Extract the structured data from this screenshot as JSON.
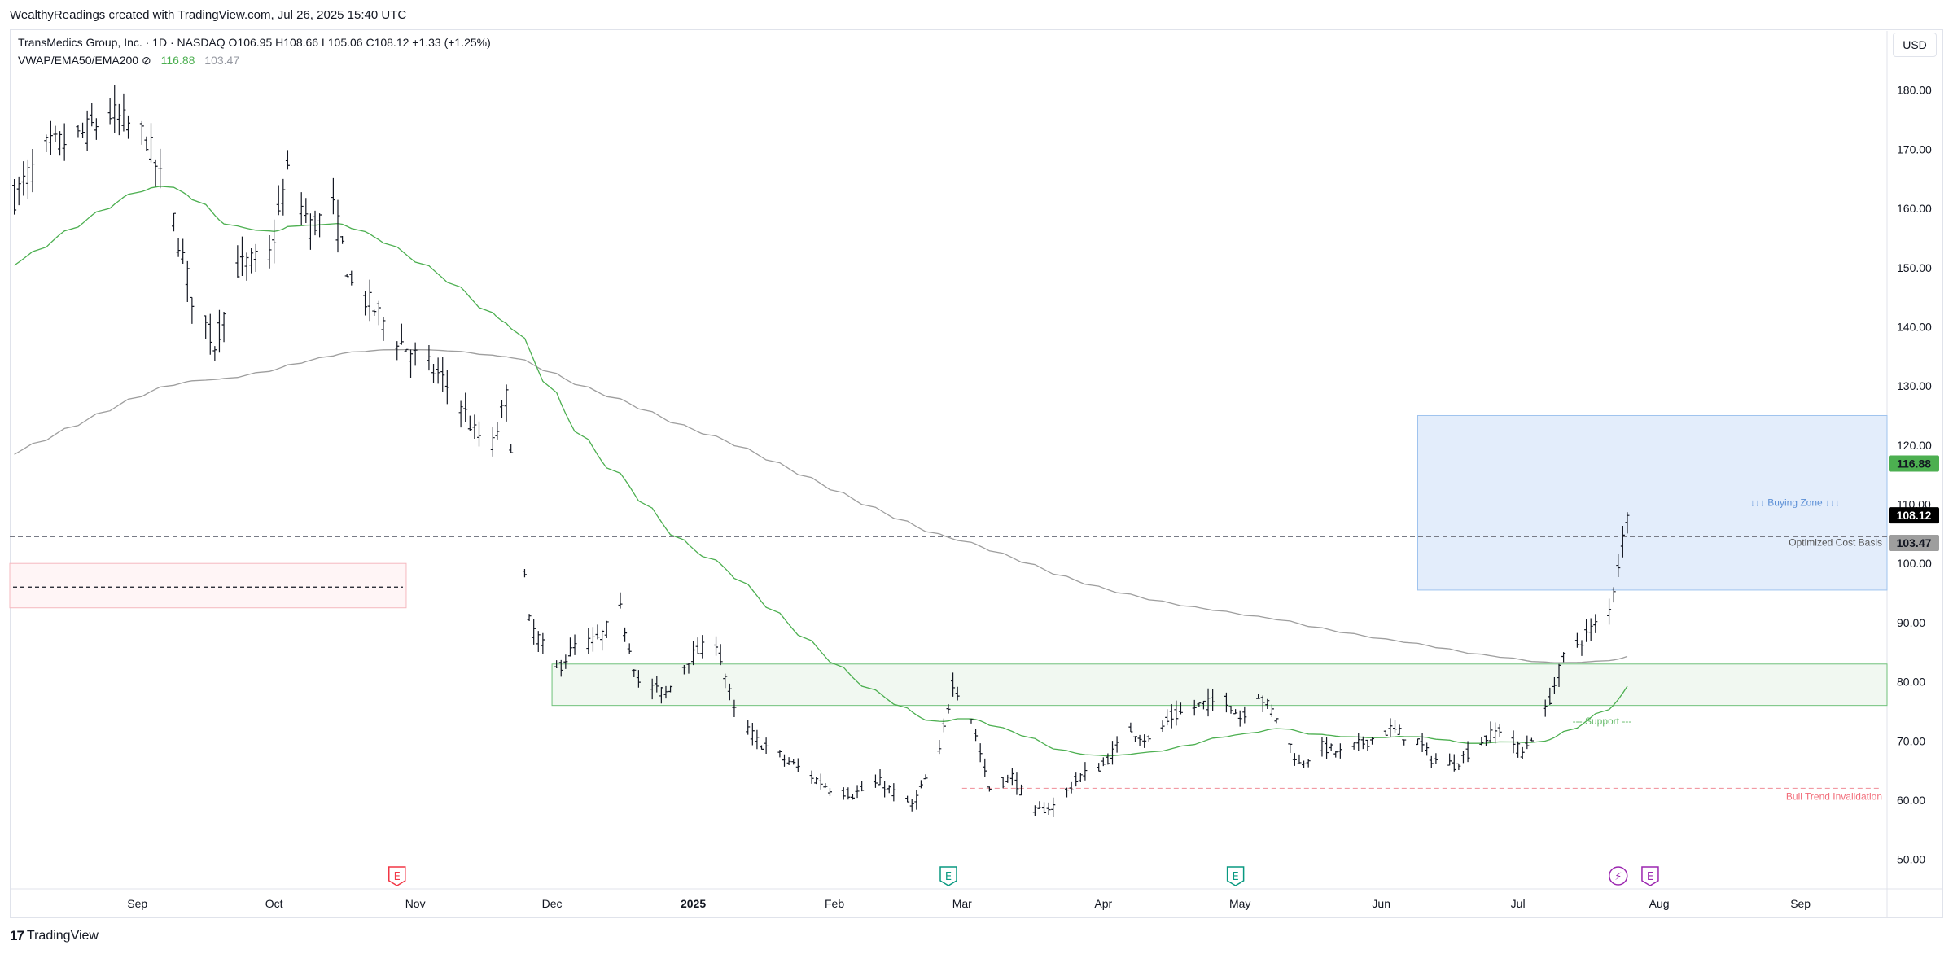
{
  "header": {
    "credit": "WealthyReadings created with TradingView.com, Jul 26, 2025 15:40 UTC"
  },
  "legend": {
    "symbol_line": "TransMedics Group, Inc. · 1D · NASDAQ  O106.95  H108.66  L105.06  C108.12  +1.33 (+1.25%)",
    "indicator_name": "VWAP/EMA50/EMA200  ⊘",
    "ema50_value": "116.88",
    "ema200_value": "103.47"
  },
  "toolbar": {
    "currency": "USD"
  },
  "footer": {
    "brand": "TradingView",
    "brand_mark": "17"
  },
  "colors": {
    "ema50": "#4caf50",
    "ema200": "#9e9e9e",
    "buying_zone_fill": "#e3edfb",
    "buying_zone_border": "#9fc3ee",
    "support_fill": "#f1f8f1",
    "support_border": "#6fc17a",
    "resistance_fill": "#fff5f6",
    "resistance_border": "#f5b8bf",
    "invalidation": "#f08c96",
    "bars": "#131722",
    "earnings_red": "#f23645",
    "earnings_teal": "#089981",
    "dividend_purple": "#9c27b0"
  },
  "chart_data": {
    "type": "ohlc",
    "symbol": "TransMedics Group, Inc.",
    "interval": "1D",
    "exchange": "NASDAQ",
    "currency": "USD",
    "last": {
      "open": 106.95,
      "high": 108.66,
      "low": 105.06,
      "close": 108.12,
      "change": 1.33,
      "change_pct": 1.25
    },
    "ylim": [
      45,
      190
    ],
    "y_ticks": [
      "50.00",
      "60.00",
      "70.00",
      "80.00",
      "90.00",
      "100.00",
      "110.00",
      "120.00",
      "130.00",
      "140.00",
      "150.00",
      "160.00",
      "170.00",
      "180.00"
    ],
    "x_ticks": [
      {
        "label": "Sep",
        "date": "2024-09-01",
        "bold": false
      },
      {
        "label": "Oct",
        "date": "2024-10-01",
        "bold": false
      },
      {
        "label": "Nov",
        "date": "2024-11-01",
        "bold": false
      },
      {
        "label": "Dec",
        "date": "2024-12-01",
        "bold": false
      },
      {
        "label": "2025",
        "date": "2025-01-01",
        "bold": true
      },
      {
        "label": "Feb",
        "date": "2025-02-01",
        "bold": false
      },
      {
        "label": "Mar",
        "date": "2025-03-01",
        "bold": false
      },
      {
        "label": "Apr",
        "date": "2025-04-01",
        "bold": false
      },
      {
        "label": "May",
        "date": "2025-05-01",
        "bold": false
      },
      {
        "label": "Jun",
        "date": "2025-06-01",
        "bold": false
      },
      {
        "label": "Jul",
        "date": "2025-07-01",
        "bold": false
      },
      {
        "label": "Aug",
        "date": "2025-08-01",
        "bold": false
      },
      {
        "label": "Sep",
        "date": "2025-09-01",
        "bold": false
      }
    ],
    "xlim": [
      "2024-08-04",
      "2025-09-20"
    ],
    "close_series": [
      {
        "date": "2024-08-05",
        "close": 162
      },
      {
        "date": "2024-08-12",
        "close": 170
      },
      {
        "date": "2024-08-19",
        "close": 172
      },
      {
        "date": "2024-08-26",
        "close": 176
      },
      {
        "date": "2024-09-03",
        "close": 172
      },
      {
        "date": "2024-09-09",
        "close": 158
      },
      {
        "date": "2024-09-13",
        "close": 145
      },
      {
        "date": "2024-09-18",
        "close": 137
      },
      {
        "date": "2024-09-23",
        "close": 150
      },
      {
        "date": "2024-09-30",
        "close": 152
      },
      {
        "date": "2024-10-04",
        "close": 166
      },
      {
        "date": "2024-10-09",
        "close": 157
      },
      {
        "date": "2024-10-14",
        "close": 160
      },
      {
        "date": "2024-10-18",
        "close": 147
      },
      {
        "date": "2024-10-23",
        "close": 143
      },
      {
        "date": "2024-10-28",
        "close": 138
      },
      {
        "date": "2024-11-01",
        "close": 135
      },
      {
        "date": "2024-11-06",
        "close": 132
      },
      {
        "date": "2024-11-11",
        "close": 127
      },
      {
        "date": "2024-11-14",
        "close": 122
      },
      {
        "date": "2024-11-18",
        "close": 120
      },
      {
        "date": "2024-11-21",
        "close": 128
      },
      {
        "date": "2024-11-26",
        "close": 90
      },
      {
        "date": "2024-12-02",
        "close": 82
      },
      {
        "date": "2024-12-06",
        "close": 86
      },
      {
        "date": "2024-12-11",
        "close": 87
      },
      {
        "date": "2024-12-16",
        "close": 92
      },
      {
        "date": "2024-12-20",
        "close": 80
      },
      {
        "date": "2024-12-26",
        "close": 78
      },
      {
        "date": "2024-12-31",
        "close": 84
      },
      {
        "date": "2025-01-06",
        "close": 87
      },
      {
        "date": "2025-01-10",
        "close": 75
      },
      {
        "date": "2025-01-15",
        "close": 70
      },
      {
        "date": "2025-01-21",
        "close": 67
      },
      {
        "date": "2025-01-27",
        "close": 64
      },
      {
        "date": "2025-01-31",
        "close": 62
      },
      {
        "date": "2025-02-05",
        "close": 61
      },
      {
        "date": "2025-02-11",
        "close": 63
      },
      {
        "date": "2025-02-18",
        "close": 59
      },
      {
        "date": "2025-02-24",
        "close": 68
      },
      {
        "date": "2025-02-27",
        "close": 80
      },
      {
        "date": "2025-03-03",
        "close": 74
      },
      {
        "date": "2025-03-07",
        "close": 62
      },
      {
        "date": "2025-03-12",
        "close": 64
      },
      {
        "date": "2025-03-17",
        "close": 58
      },
      {
        "date": "2025-03-21",
        "close": 59
      },
      {
        "date": "2025-03-27",
        "close": 64
      },
      {
        "date": "2025-04-01",
        "close": 66
      },
      {
        "date": "2025-04-07",
        "close": 72
      },
      {
        "date": "2025-04-11",
        "close": 70
      },
      {
        "date": "2025-04-16",
        "close": 74
      },
      {
        "date": "2025-04-22",
        "close": 76
      },
      {
        "date": "2025-04-28",
        "close": 77
      },
      {
        "date": "2025-05-01",
        "close": 74
      },
      {
        "date": "2025-05-05",
        "close": 78
      },
      {
        "date": "2025-05-09",
        "close": 74
      },
      {
        "date": "2025-05-14",
        "close": 66
      },
      {
        "date": "2025-05-19",
        "close": 69
      },
      {
        "date": "2025-05-23",
        "close": 68
      },
      {
        "date": "2025-05-29",
        "close": 70
      },
      {
        "date": "2025-06-03",
        "close": 72
      },
      {
        "date": "2025-06-09",
        "close": 70
      },
      {
        "date": "2025-06-12",
        "close": 67
      },
      {
        "date": "2025-06-17",
        "close": 66
      },
      {
        "date": "2025-06-23",
        "close": 70
      },
      {
        "date": "2025-06-27",
        "close": 72
      },
      {
        "date": "2025-07-02",
        "close": 68
      },
      {
        "date": "2025-07-07",
        "close": 75
      },
      {
        "date": "2025-07-11",
        "close": 84
      },
      {
        "date": "2025-07-16",
        "close": 88
      },
      {
        "date": "2025-07-21",
        "close": 92
      },
      {
        "date": "2025-07-25",
        "close": 108.12
      }
    ],
    "series": [
      {
        "name": "EMA50",
        "color": "#4caf50",
        "last": 116.88
      },
      {
        "name": "EMA200",
        "color": "#9e9e9e",
        "last": 103.47
      }
    ],
    "zones": [
      {
        "label": "↓↓↓ Buying Zone ↓↓↓",
        "from_date": "2025-06-09",
        "y_from": 95.5,
        "y_to": 125
      },
      {
        "label": "--- Support ---",
        "from_date": "2024-12-01",
        "y_from": 76,
        "y_to": 83
      },
      {
        "label": "",
        "from_date": "2024-08-04",
        "to_date": "2024-10-30",
        "y_from": 92.5,
        "y_to": 100
      }
    ],
    "lines": [
      {
        "label": "Optimized Cost Basis",
        "y": 104.5,
        "style": "dashed"
      },
      {
        "label": "Bull Trend Invalidation",
        "y": 62,
        "style": "dashed",
        "from_date": "2025-03-01"
      }
    ],
    "price_labels": [
      {
        "value": "116.88",
        "y": 116.88,
        "color": "#4caf50",
        "text_color": "#131722"
      },
      {
        "value": "108.12",
        "y": 108.12,
        "color": "#000000",
        "text_color": "#ffffff"
      },
      {
        "value": "103.47",
        "y": 103.47,
        "color": "#9e9e9e",
        "text_color": "#131722"
      }
    ],
    "events": [
      {
        "type": "earnings",
        "symbol": "E",
        "date": "2024-10-28",
        "color": "#f23645"
      },
      {
        "type": "earnings",
        "symbol": "E",
        "date": "2025-02-26",
        "color": "#089981"
      },
      {
        "type": "earnings",
        "symbol": "E",
        "date": "2025-04-30",
        "color": "#089981"
      },
      {
        "type": "dividend",
        "symbol": "⚡",
        "date": "2025-07-23",
        "color": "#9c27b0"
      },
      {
        "type": "earnings",
        "symbol": "E",
        "date": "2025-07-30",
        "color": "#9c27b0"
      }
    ]
  }
}
